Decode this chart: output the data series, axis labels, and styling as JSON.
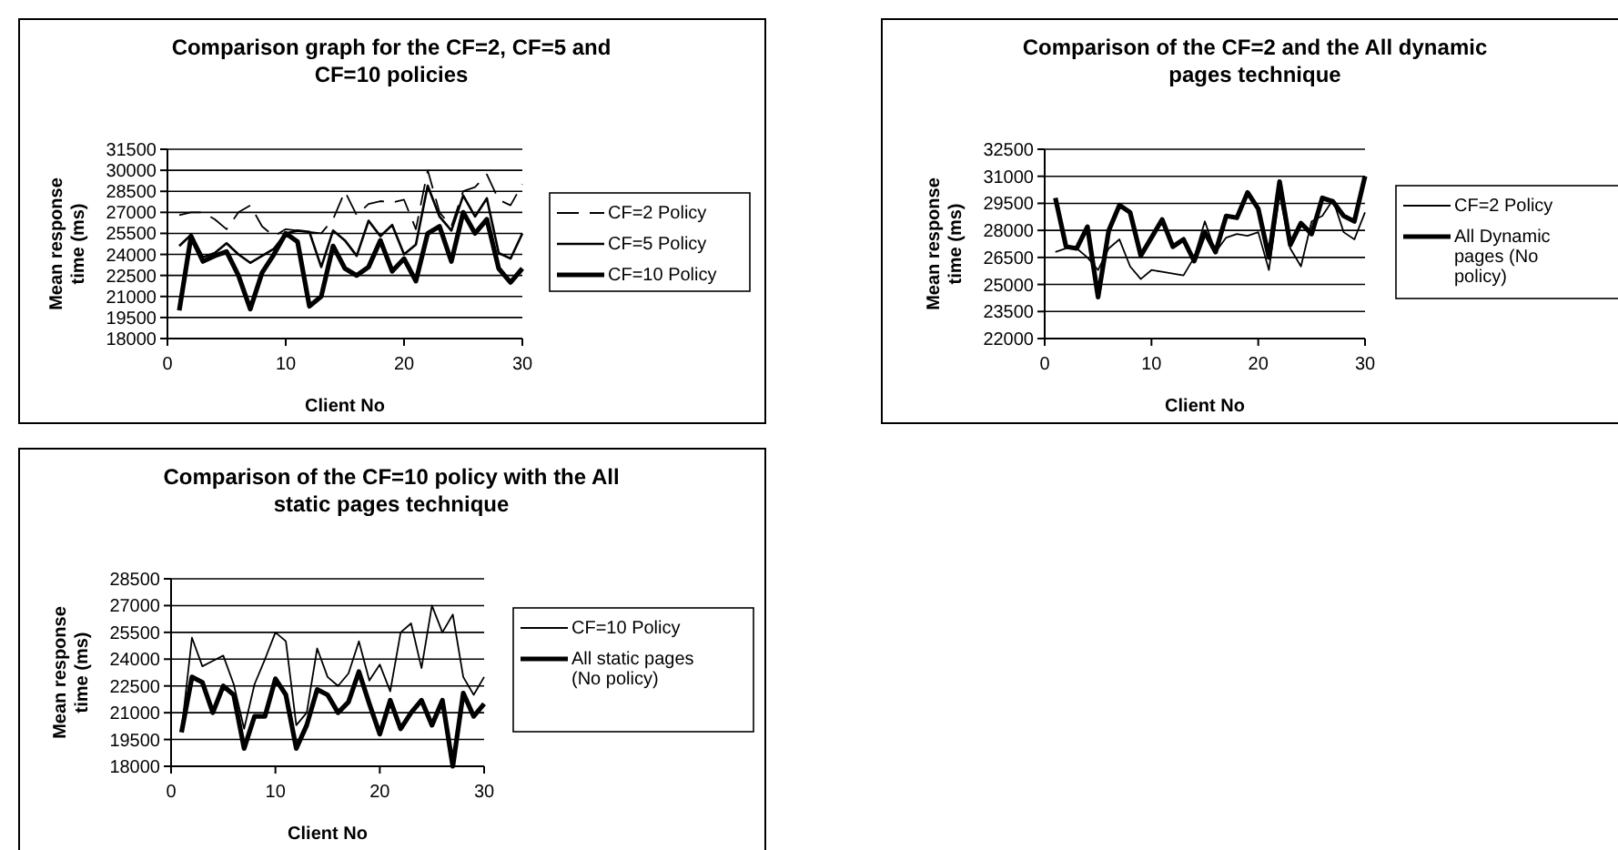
{
  "chart_data": [
    {
      "type": "line",
      "title": "Comparison graph for the CF=2, CF=5 and CF=10 policies",
      "xlabel": "Client No",
      "ylabel": "Mean response time (ms)",
      "x": [
        1,
        2,
        3,
        4,
        5,
        6,
        7,
        8,
        9,
        10,
        11,
        12,
        13,
        14,
        15,
        16,
        17,
        18,
        19,
        20,
        21,
        22,
        23,
        24,
        25,
        26,
        27,
        28,
        29,
        30
      ],
      "xlim": [
        0,
        30
      ],
      "xticks": [
        0,
        10,
        20,
        30
      ],
      "ylim": [
        18000,
        31500
      ],
      "yticks": [
        18000,
        19500,
        21000,
        22500,
        24000,
        25500,
        27000,
        28500,
        30000,
        31500
      ],
      "grid": "y",
      "legend": "right",
      "marker": "none",
      "series": [
        {
          "name": "CF=2 Policy",
          "color": "#000000",
          "line_style": "dashed",
          "values": [
            26800,
            27000,
            27000,
            26500,
            25800,
            27000,
            27500,
            26000,
            25300,
            25800,
            25700,
            25600,
            25500,
            26500,
            28500,
            26800,
            27600,
            27800,
            27700,
            27900,
            25800,
            30000,
            27000,
            26000,
            28500,
            28800,
            29700,
            27900,
            27500,
            29000
          ]
        },
        {
          "name": "CF=5 Policy",
          "color": "#000000",
          "line_style": "solid",
          "values": [
            24600,
            25400,
            23800,
            24100,
            24800,
            24000,
            23400,
            23900,
            24400,
            25500,
            25700,
            25600,
            23100,
            25700,
            25000,
            23900,
            26400,
            25300,
            26100,
            24000,
            24700,
            28900,
            26700,
            25700,
            28200,
            26700,
            28000,
            24100,
            23700,
            25500
          ]
        },
        {
          "name": "CF=10 Policy",
          "color": "#000000",
          "line_style": "solid",
          "values": [
            20000,
            25300,
            23500,
            23900,
            24200,
            22500,
            20100,
            22700,
            24000,
            25500,
            24900,
            20300,
            21000,
            24600,
            23000,
            22500,
            23100,
            25000,
            22800,
            23700,
            22100,
            25500,
            26000,
            23500,
            27000,
            25500,
            26500,
            23000,
            22000,
            23000
          ]
        }
      ]
    },
    {
      "type": "line",
      "title": "Comparison of the CF=2 and the All dynamic pages technique",
      "xlabel": "Client No",
      "ylabel": "Mean response time (ms)",
      "x": [
        1,
        2,
        3,
        4,
        5,
        6,
        7,
        8,
        9,
        10,
        11,
        12,
        13,
        14,
        15,
        16,
        17,
        18,
        19,
        20,
        21,
        22,
        23,
        24,
        25,
        26,
        27,
        28,
        29,
        30
      ],
      "xlim": [
        0,
        30
      ],
      "xticks": [
        0,
        10,
        20,
        30
      ],
      "ylim": [
        22000,
        32500
      ],
      "yticks": [
        22000,
        23500,
        25000,
        26500,
        28000,
        29500,
        31000,
        32500
      ],
      "grid": "y",
      "legend": "right",
      "marker": "none",
      "series": [
        {
          "name": "CF=2 Policy",
          "color": "#000000",
          "values": [
            26800,
            27000,
            27000,
            26500,
            25800,
            27000,
            27500,
            26000,
            25300,
            25800,
            25700,
            25600,
            25500,
            26500,
            28500,
            26800,
            27600,
            27800,
            27700,
            27900,
            25800,
            30000,
            27000,
            26000,
            28500,
            28800,
            29700,
            27900,
            27500,
            29000
          ]
        },
        {
          "name": "All Dynamic pages (No policy)",
          "color": "#000000",
          "values": [
            29800,
            27100,
            27000,
            28200,
            24300,
            28000,
            29400,
            29000,
            26600,
            27600,
            28600,
            27100,
            27500,
            26300,
            27900,
            26800,
            28800,
            28700,
            30100,
            29200,
            26500,
            30700,
            27200,
            28400,
            27800,
            29800,
            29600,
            28800,
            28500,
            31000
          ]
        }
      ]
    },
    {
      "type": "line",
      "title": "Comparison of the CF=10 policy with the All static pages technique",
      "xlabel": "Client No",
      "ylabel": "Mean response time (ms)",
      "x": [
        1,
        2,
        3,
        4,
        5,
        6,
        7,
        8,
        9,
        10,
        11,
        12,
        13,
        14,
        15,
        16,
        17,
        18,
        19,
        20,
        21,
        22,
        23,
        24,
        25,
        26,
        27,
        28,
        29,
        30
      ],
      "xlim": [
        0,
        30
      ],
      "xticks": [
        0,
        10,
        20,
        30
      ],
      "ylim": [
        18000,
        28500
      ],
      "yticks": [
        18000,
        19500,
        21000,
        22500,
        24000,
        25500,
        27000,
        28500
      ],
      "grid": "y",
      "legend": "right",
      "marker": "none",
      "series": [
        {
          "name": "CF=10 Policy",
          "color": "#000000",
          "values": [
            20000,
            25200,
            23600,
            23900,
            24200,
            22600,
            20100,
            22600,
            24000,
            25500,
            25000,
            20300,
            21000,
            24600,
            23000,
            22500,
            23200,
            25000,
            22800,
            23700,
            22200,
            25500,
            26000,
            23500,
            27000,
            25500,
            26500,
            23000,
            22000,
            23000
          ]
        },
        {
          "name": "All static pages (No policy)",
          "color": "#000000",
          "values": [
            19900,
            23000,
            22700,
            21000,
            22500,
            22000,
            19000,
            20800,
            20800,
            22900,
            22000,
            19000,
            20300,
            22300,
            22000,
            21000,
            21600,
            23300,
            21500,
            19800,
            21700,
            20100,
            21000,
            21700,
            20300,
            21700,
            18000,
            22100,
            20800,
            21500
          ]
        }
      ]
    }
  ]
}
